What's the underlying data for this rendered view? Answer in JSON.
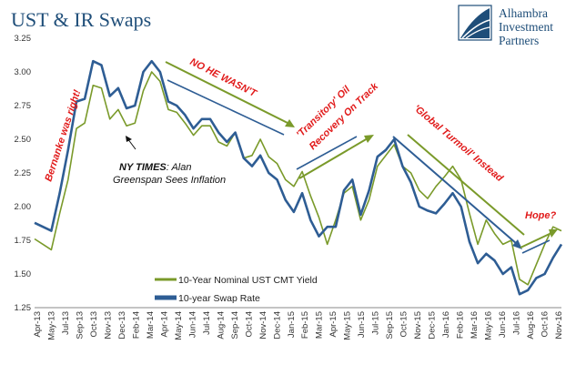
{
  "title": "UST & IR Swaps",
  "logo": {
    "line1": "Alhambra",
    "line2": "Investment",
    "line3": "Partners"
  },
  "colors": {
    "series1": "#7a9a2a",
    "series2": "#2e5d94",
    "title": "#1f4e79",
    "annotation": "#e11b1b"
  },
  "chart_data": {
    "type": "line",
    "xlabel": "",
    "ylabel": "",
    "ylim": [
      1.25,
      3.25
    ],
    "yticks": [
      "1.25",
      "1.50",
      "1.75",
      "2.00",
      "2.25",
      "2.50",
      "2.75",
      "3.00",
      "3.25"
    ],
    "xticks": [
      "Apr-13",
      "May-13",
      "Jul-13",
      "Sep-13",
      "Oct-13",
      "Nov-13",
      "Dec-13",
      "Feb-14",
      "Mar-14",
      "Apr-14",
      "May-14",
      "Jun-14",
      "Jul-14",
      "Aug-14",
      "Sep-14",
      "Oct-14",
      "Nov-14",
      "Dec-14",
      "Jan-15",
      "Feb-15",
      "Mar-15",
      "Apr-15",
      "May-15",
      "Jun-15",
      "Jul-15",
      "Sep-15",
      "Oct-15",
      "Nov-15",
      "Dec-15",
      "Jan-16",
      "Feb-16",
      "Mar-16",
      "May-16",
      "Jun-16",
      "Jul-16",
      "Aug-16",
      "Oct-16",
      "Nov-16"
    ],
    "legend_position": "bottom-center",
    "series": [
      {
        "name": "10-Year Nominal UST CMT Yield",
        "values": [
          1.76,
          1.72,
          1.68,
          1.95,
          2.2,
          2.58,
          2.62,
          2.9,
          2.88,
          2.65,
          2.72,
          2.6,
          2.62,
          2.86,
          3.0,
          2.93,
          2.72,
          2.7,
          2.62,
          2.53,
          2.6,
          2.6,
          2.48,
          2.45,
          2.55,
          2.36,
          2.38,
          2.5,
          2.37,
          2.32,
          2.2,
          2.15,
          2.26,
          2.08,
          1.92,
          1.72,
          1.9,
          2.1,
          2.15,
          1.9,
          2.05,
          2.3,
          2.38,
          2.46,
          2.3,
          2.25,
          2.12,
          2.06,
          2.15,
          2.22,
          2.3,
          2.2,
          1.95,
          1.72,
          1.9,
          1.8,
          1.72,
          1.75,
          1.46,
          1.42,
          1.57,
          1.72,
          1.85,
          1.82
        ]
      },
      {
        "name": "10-year Swap Rate",
        "values": [
          1.88,
          1.85,
          1.82,
          2.1,
          2.42,
          2.78,
          2.8,
          3.08,
          3.05,
          2.82,
          2.88,
          2.73,
          2.75,
          3.0,
          3.08,
          3.0,
          2.78,
          2.75,
          2.68,
          2.58,
          2.65,
          2.65,
          2.55,
          2.48,
          2.55,
          2.36,
          2.3,
          2.38,
          2.25,
          2.2,
          2.05,
          1.96,
          2.1,
          1.9,
          1.78,
          1.85,
          1.85,
          2.12,
          2.2,
          1.94,
          2.12,
          2.37,
          2.42,
          2.5,
          2.3,
          2.18,
          2.0,
          1.97,
          1.95,
          2.02,
          2.1,
          2.0,
          1.74,
          1.58,
          1.65,
          1.6,
          1.5,
          1.55,
          1.35,
          1.38,
          1.47,
          1.5,
          1.62,
          1.72
        ]
      }
    ]
  },
  "annotations": {
    "bernanke": "Bernanke was right!",
    "nytimes_bold": "NY TIMES",
    "nytimes_rest": ": Alan",
    "greenspan": "Greenspan Sees Inflation",
    "no_he_wasnt": "NO HE WASN'T",
    "transitory1": "'Transitory' Oil",
    "transitory2": "Recovery On Track",
    "global": "'Global Turmoil' Instead",
    "hope": "Hope?"
  }
}
